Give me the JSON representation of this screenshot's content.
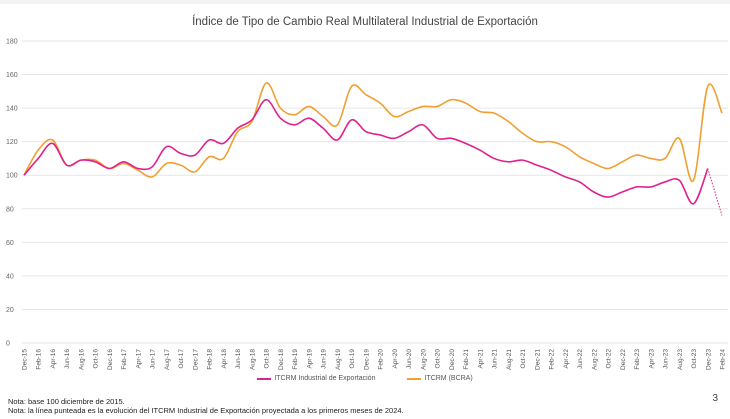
{
  "chart_data": {
    "type": "line",
    "title": "Índice de Tipo de Cambio Real Multilateral Industrial de Exportación",
    "ylim": [
      0,
      180
    ],
    "yticks": [
      0,
      20,
      40,
      60,
      80,
      100,
      120,
      140,
      160,
      180
    ],
    "grid": true,
    "legend_placement": "bottom",
    "categories": [
      "Dec-15",
      "Feb-16",
      "Apr-16",
      "Jun-16",
      "Aug-16",
      "Oct-16",
      "Dec-16",
      "Feb-17",
      "Apr-17",
      "Jun-17",
      "Aug-17",
      "Oct-17",
      "Dec-17",
      "Feb-18",
      "Apr-18",
      "Jun-18",
      "Aug-18",
      "Oct-18",
      "Dec-18",
      "Feb-19",
      "Apr-19",
      "Jun-19",
      "Aug-19",
      "Oct-19",
      "Dec-19",
      "Feb-20",
      "Apr-20",
      "Jun-20",
      "Aug-20",
      "Oct-20",
      "Dec-20",
      "Feb-21",
      "Apr-21",
      "Jun-21",
      "Aug-21",
      "Oct-21",
      "Dec-21",
      "Feb-22",
      "Apr-22",
      "Jun-22",
      "Aug-22",
      "Oct-22",
      "Dec-22",
      "Feb-23",
      "Apr-23",
      "Jun-23",
      "Aug-23",
      "Oct-23",
      "Dec-23",
      "Feb-24"
    ],
    "series": [
      {
        "name": "ITCRM Industrial de Exportación",
        "color": "#e0208f",
        "values": [
          100,
          110,
          119,
          106,
          109,
          108,
          104,
          108,
          104,
          105,
          117,
          113,
          112,
          121,
          119,
          128,
          133,
          145,
          134,
          130,
          134,
          128,
          121,
          133,
          126,
          124,
          122,
          126,
          130,
          122,
          122,
          119,
          115,
          110,
          108,
          109,
          106,
          103,
          99,
          96,
          90,
          87,
          90,
          93,
          93,
          96,
          97,
          83,
          104,
          76
        ],
        "projected_from": "Dec-23"
      },
      {
        "name": "ITCRM (BCRA)",
        "color": "#f0a030",
        "values": [
          100,
          115,
          121,
          106,
          109,
          109,
          104,
          107,
          103,
          99,
          107,
          106,
          102,
          111,
          110,
          126,
          132,
          155,
          140,
          136,
          141,
          135,
          130,
          153,
          148,
          143,
          135,
          138,
          141,
          141,
          145,
          143,
          138,
          137,
          132,
          125,
          120,
          120,
          117,
          111,
          107,
          104,
          108,
          112,
          110,
          110,
          122,
          97,
          153,
          137
        ]
      }
    ]
  },
  "notes": [
    "Nota: base 100 diciembre de 2015.",
    "Nota: la línea punteada es la evolución del ITCRM Industrial de Exportación proyectada a los primeros meses de 2024."
  ],
  "page_number": "3"
}
